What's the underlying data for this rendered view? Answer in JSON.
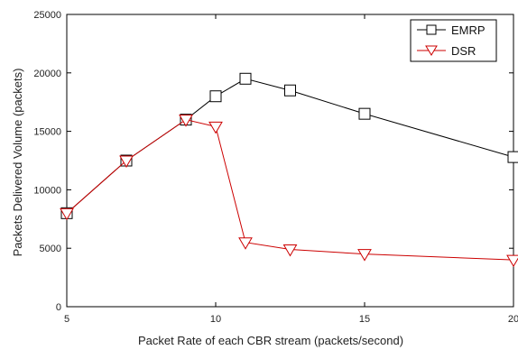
{
  "chart_data": {
    "type": "line",
    "title": "",
    "xlabel": "Packet Rate of each CBR stream (packets/second)",
    "ylabel": "Packets Delivered Volume (packets)",
    "xlim": [
      5,
      20
    ],
    "ylim": [
      0,
      25000
    ],
    "x_ticks": [
      5,
      10,
      15,
      20
    ],
    "y_ticks": [
      0,
      5000,
      10000,
      15000,
      20000,
      25000
    ],
    "grid": false,
    "legend_position": "top-right",
    "series": [
      {
        "name": "EMRP",
        "marker": "square",
        "color": "#000000",
        "x": [
          5,
          7,
          9,
          10,
          11,
          12.5,
          15,
          20
        ],
        "y": [
          8000,
          12500,
          16000,
          18000,
          19500,
          18500,
          16500,
          12800
        ]
      },
      {
        "name": "DSR",
        "marker": "triangle-down",
        "color": "#cc0000",
        "x": [
          5,
          7,
          9,
          10,
          11,
          12.5,
          15,
          20
        ],
        "y": [
          8000,
          12500,
          16000,
          15400,
          5500,
          4900,
          4500,
          4000
        ]
      }
    ]
  }
}
